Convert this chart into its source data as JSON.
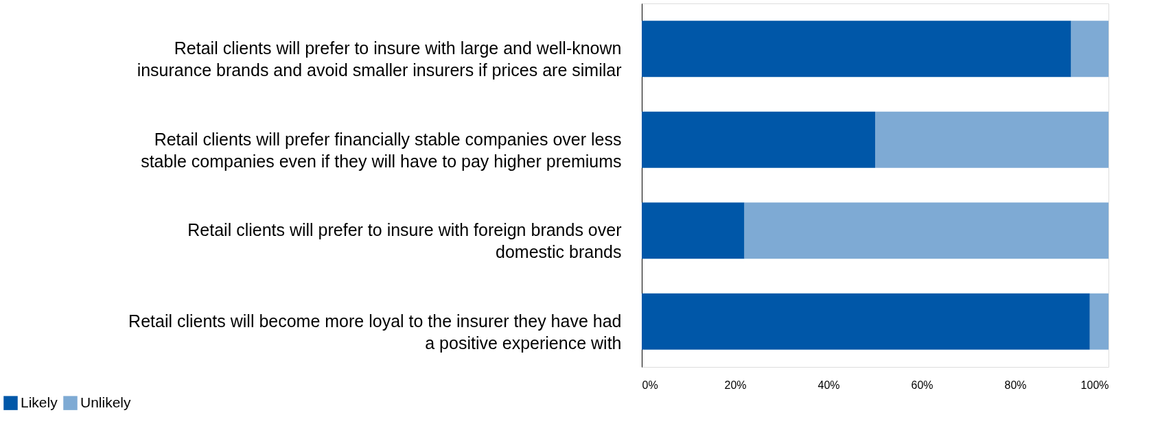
{
  "chart_data": {
    "type": "bar",
    "orientation": "horizontal",
    "stacked": true,
    "categories": [
      "Retail clients will prefer to insure with large and well-known insurance brands and avoid smaller insurers if prices are similar",
      "Retail clients will prefer financially stable companies over less stable companies even if they will have to pay higher premiums",
      "Retail clients will prefer to insure with foreign brands over domestic brands",
      "Retail clients will become more loyal to the insurer they have had a positive experience with"
    ],
    "series": [
      {
        "name": "Likely",
        "color": "#0057a8",
        "values": [
          92,
          50,
          22,
          96
        ]
      },
      {
        "name": "Unlikely",
        "color": "#7eaad4",
        "values": [
          8,
          50,
          78,
          4
        ]
      }
    ],
    "xlim": [
      0,
      100
    ],
    "xticks": [
      {
        "value": 0,
        "label": "0%"
      },
      {
        "value": 20,
        "label": "20%"
      },
      {
        "value": 40,
        "label": "40%"
      },
      {
        "value": 60,
        "label": "60%"
      },
      {
        "value": 80,
        "label": "80%"
      },
      {
        "value": 100,
        "label": "100%"
      }
    ],
    "grid": false,
    "legend": "bottom left"
  }
}
